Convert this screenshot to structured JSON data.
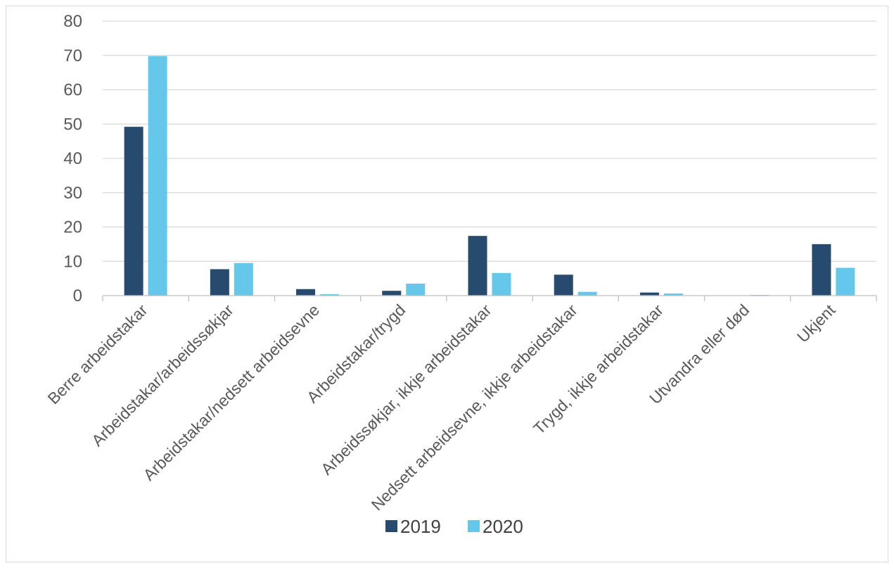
{
  "chart_data": {
    "type": "bar",
    "categories": [
      "Berre arbeidstakar",
      "Arbeidstakar/arbeidssøkjar",
      "Arbeidstakar/nedsett arbeidsevne",
      "Arbeidstakar/trygd",
      "Arbeidssøkjar, ikkje arbeidstakar",
      "Nedsett arbeidsevne, ikkje arbeidstakar",
      "Trygd, ikkje arbeidstakar",
      "Utvandra eller død",
      "Ukjent"
    ],
    "series": [
      {
        "name": "2019",
        "color": "#264b6e",
        "values": [
          49.2,
          7.7,
          1.9,
          1.4,
          17.4,
          6.1,
          0.9,
          0.0,
          15.0
        ]
      },
      {
        "name": "2020",
        "color": "#65c8ea",
        "values": [
          69.8,
          9.5,
          0.4,
          3.5,
          6.6,
          1.1,
          0.6,
          0.2,
          8.1
        ]
      }
    ],
    "ylim": [
      0,
      80
    ],
    "yticks": [
      "0",
      "10",
      "20",
      "30",
      "40",
      "50",
      "60",
      "70",
      "80"
    ],
    "grid": true,
    "legend": "bottom-center",
    "title": "",
    "xlabel": "",
    "ylabel": ""
  }
}
